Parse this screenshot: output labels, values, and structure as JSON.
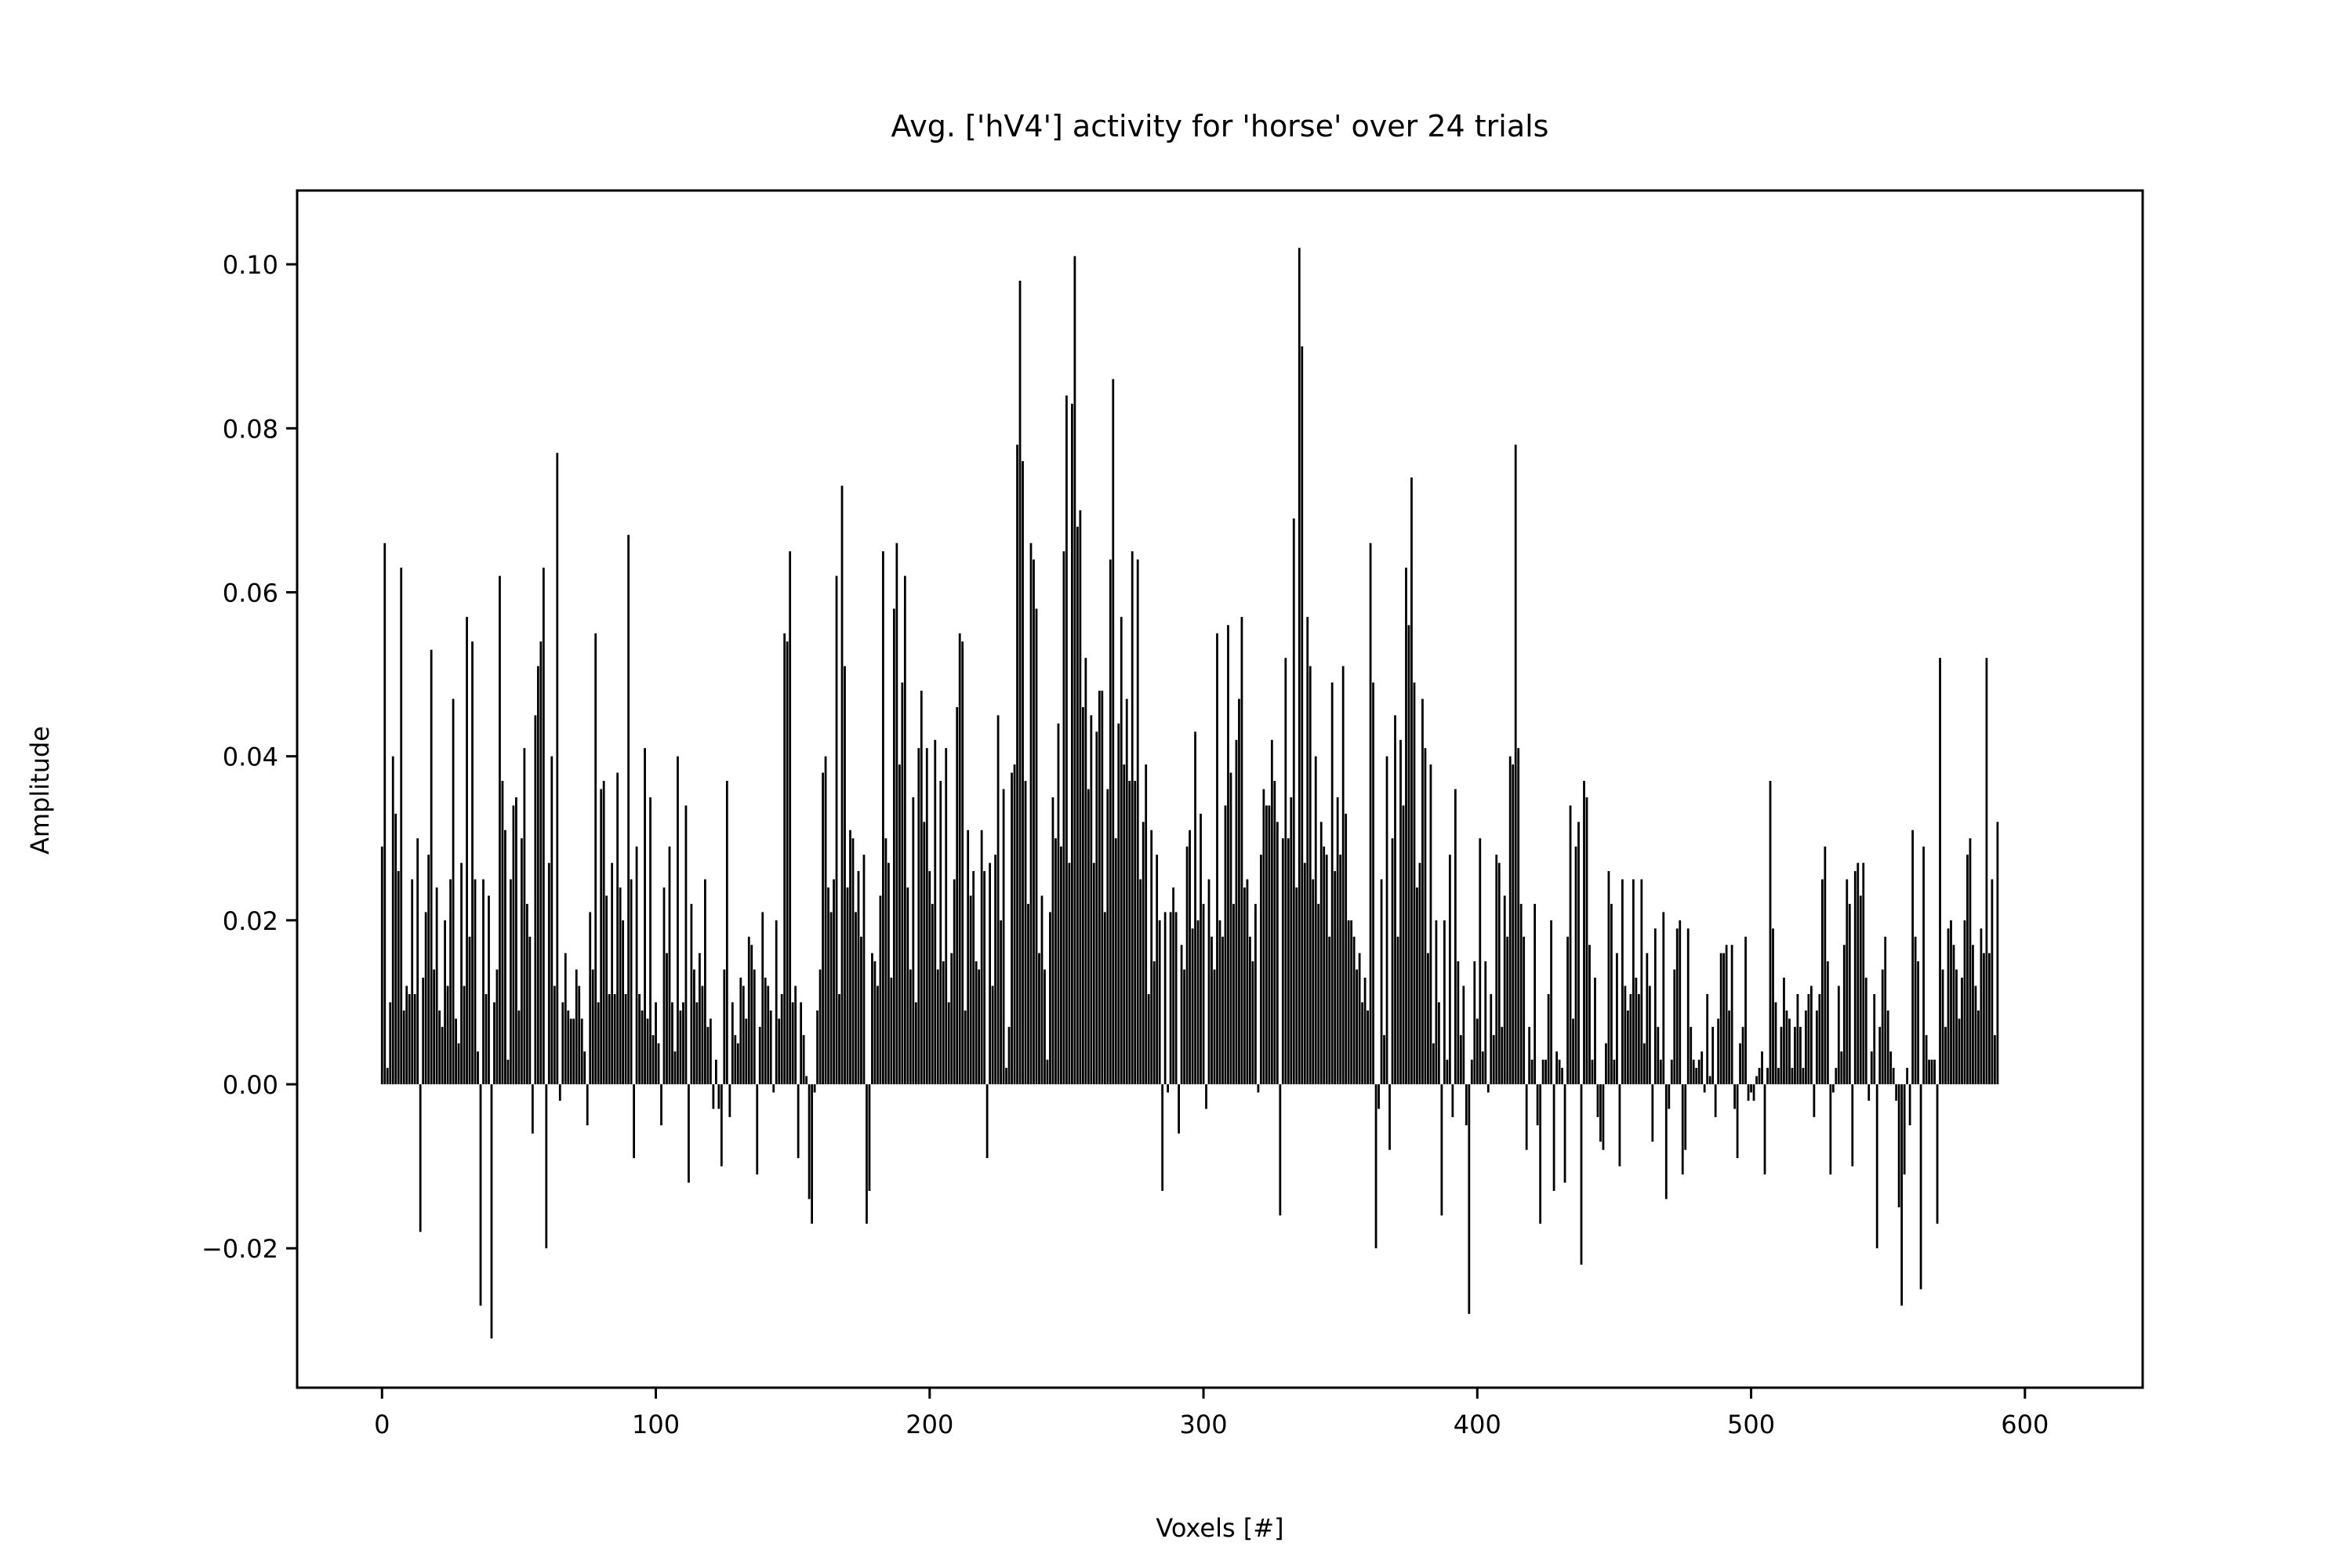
{
  "chart_data": {
    "type": "bar",
    "title": "Avg. ['hV4'] activity for 'horse' over 24 trials",
    "xlabel": "Voxels [#]",
    "ylabel": "Amplitude",
    "xlim": [
      -31,
      643
    ],
    "ylim": [
      -0.037,
      0.109
    ],
    "xticks": [
      0,
      100,
      200,
      300,
      400,
      500,
      600
    ],
    "xtick_labels": [
      "0",
      "100",
      "200",
      "300",
      "400",
      "500",
      "600"
    ],
    "yticks": [
      -0.02,
      0.0,
      0.02,
      0.04,
      0.06,
      0.08,
      0.1
    ],
    "ytick_labels": [
      "−0.02",
      "0.00",
      "0.02",
      "0.04",
      "0.06",
      "0.08",
      "0.10"
    ],
    "grid": false,
    "bar_color": "#000000",
    "x_start": 0,
    "x_step": 1,
    "values": [
      0.029,
      0.066,
      0.002,
      0.01,
      0.04,
      0.033,
      0.026,
      0.063,
      0.009,
      0.012,
      0.011,
      0.025,
      0.011,
      0.03,
      -0.018,
      0.013,
      0.021,
      0.028,
      0.053,
      0.014,
      0.024,
      0.009,
      0.007,
      0.02,
      0.012,
      0.025,
      0.047,
      0.008,
      0.005,
      0.027,
      0.012,
      0.057,
      0.018,
      0.054,
      0.025,
      0.004,
      -0.027,
      0.025,
      0.011,
      0.023,
      -0.031,
      0.01,
      0.014,
      0.062,
      0.037,
      0.031,
      0.003,
      0.025,
      0.034,
      0.035,
      0.009,
      0.03,
      0.041,
      0.022,
      0.018,
      -0.006,
      0.045,
      0.051,
      0.054,
      0.063,
      -0.02,
      0.027,
      0.04,
      0.012,
      0.077,
      -0.002,
      0.01,
      0.016,
      0.009,
      0.008,
      0.008,
      0.014,
      0.012,
      0.008,
      0.004,
      -0.005,
      0.021,
      0.014,
      0.055,
      0.01,
      0.036,
      0.037,
      0.023,
      0.011,
      0.027,
      0.011,
      0.038,
      0.024,
      0.02,
      0.011,
      0.067,
      0.025,
      -0.009,
      0.029,
      0.011,
      0.009,
      0.041,
      0.008,
      0.035,
      0.006,
      0.01,
      0.005,
      -0.005,
      0.024,
      0.016,
      0.029,
      0.01,
      0.004,
      0.04,
      0.009,
      0.01,
      0.034,
      -0.012,
      0.022,
      0.014,
      0.01,
      0.016,
      0.012,
      0.025,
      0.007,
      0.008,
      -0.003,
      0.003,
      -0.003,
      -0.01,
      0.014,
      0.037,
      -0.004,
      0.01,
      0.006,
      0.005,
      0.013,
      0.012,
      0.008,
      0.018,
      0.017,
      0.014,
      -0.011,
      0.007,
      0.021,
      0.013,
      0.012,
      0.009,
      -0.001,
      0.02,
      0.008,
      0.011,
      0.055,
      0.054,
      0.065,
      0.01,
      0.012,
      -0.009,
      0.01,
      0.006,
      0.001,
      -0.014,
      -0.017,
      -0.001,
      0.009,
      0.014,
      0.038,
      0.04,
      0.024,
      0.021,
      0.025,
      0.062,
      0.011,
      0.073,
      0.051,
      0.024,
      0.031,
      0.03,
      0.021,
      0.026,
      0.018,
      0.028,
      -0.017,
      -0.013,
      0.016,
      0.015,
      0.012,
      0.023,
      0.065,
      0.03,
      0.027,
      0.013,
      0.058,
      0.066,
      0.039,
      0.049,
      0.062,
      0.024,
      0.014,
      0.035,
      0.01,
      0.041,
      0.048,
      0.032,
      0.041,
      0.026,
      0.022,
      0.042,
      0.014,
      0.037,
      0.015,
      0.041,
      0.01,
      0.016,
      0.025,
      0.046,
      0.055,
      0.054,
      0.009,
      0.031,
      0.023,
      0.026,
      0.015,
      0.014,
      0.031,
      0.026,
      -0.009,
      0.027,
      0.012,
      0.028,
      0.045,
      0.02,
      0.036,
      0.002,
      0.007,
      0.038,
      0.039,
      0.078,
      0.098,
      0.076,
      0.037,
      0.022,
      0.066,
      0.064,
      0.058,
      0.016,
      0.023,
      0.014,
      0.003,
      0.021,
      0.035,
      0.03,
      0.044,
      0.029,
      0.065,
      0.084,
      0.027,
      0.083,
      0.101,
      0.068,
      0.07,
      0.046,
      0.052,
      0.036,
      0.045,
      0.027,
      0.043,
      0.048,
      0.048,
      0.021,
      0.036,
      0.064,
      0.086,
      0.03,
      0.044,
      0.057,
      0.039,
      0.047,
      0.037,
      0.065,
      0.037,
      0.064,
      0.025,
      0.032,
      0.039,
      0.011,
      0.031,
      0.015,
      0.028,
      0.02,
      -0.013,
      0.021,
      -0.001,
      0.021,
      0.024,
      0.021,
      -0.006,
      0.017,
      0.014,
      0.029,
      0.031,
      0.019,
      0.043,
      0.02,
      0.033,
      0.022,
      -0.003,
      0.025,
      0.018,
      0.014,
      0.055,
      0.02,
      0.018,
      0.034,
      0.056,
      0.038,
      0.022,
      0.042,
      0.047,
      0.057,
      0.024,
      0.025,
      0.018,
      0.015,
      0.022,
      -0.001,
      0.028,
      0.036,
      0.034,
      0.034,
      0.042,
      0.037,
      0.032,
      -0.016,
      0.03,
      0.052,
      0.03,
      0.035,
      0.069,
      0.024,
      0.102,
      0.09,
      0.027,
      0.057,
      0.051,
      0.025,
      0.04,
      0.022,
      0.032,
      0.029,
      0.028,
      0.018,
      0.049,
      0.026,
      0.035,
      0.028,
      0.051,
      0.033,
      0.02,
      0.02,
      0.018,
      0.014,
      0.016,
      0.01,
      0.013,
      0.009,
      0.066,
      0.049,
      -0.02,
      -0.003,
      0.025,
      0.006,
      0.04,
      -0.008,
      0.03,
      0.045,
      0.018,
      0.042,
      0.034,
      0.063,
      0.056,
      0.074,
      0.049,
      0.024,
      0.027,
      0.047,
      0.041,
      0.016,
      0.039,
      0.005,
      0.02,
      0.01,
      -0.016,
      0.02,
      0.003,
      0.028,
      -0.004,
      0.036,
      0.015,
      0.006,
      0.012,
      -0.005,
      -0.028,
      0.003,
      0.015,
      0.008,
      0.03,
      0.004,
      0.015,
      -0.001,
      0.011,
      0.006,
      0.028,
      0.027,
      0.007,
      0.023,
      0.018,
      0.04,
      0.039,
      0.078,
      0.041,
      0.022,
      0.018,
      -0.008,
      0.007,
      0.003,
      0.022,
      -0.005,
      -0.017,
      0.003,
      0.003,
      0.011,
      0.02,
      -0.013,
      0.004,
      0.003,
      0.002,
      -0.012,
      0.018,
      0.034,
      0.008,
      0.029,
      0.032,
      -0.022,
      0.037,
      0.035,
      0.017,
      0.003,
      0.013,
      -0.004,
      -0.007,
      -0.008,
      0.005,
      0.026,
      0.022,
      0.003,
      0.016,
      -0.01,
      0.025,
      0.012,
      0.009,
      0.011,
      0.025,
      0.013,
      0.011,
      0.025,
      0.005,
      0.016,
      0.012,
      -0.007,
      0.019,
      0.007,
      0.003,
      0.021,
      -0.014,
      -0.003,
      0.003,
      0.014,
      0.019,
      0.02,
      -0.011,
      -0.008,
      0.019,
      0.007,
      0.003,
      0.002,
      0.003,
      0.004,
      -0.001,
      0.011,
      0.001,
      0.007,
      -0.004,
      0.008,
      0.016,
      0.016,
      0.017,
      0.009,
      0.017,
      -0.003,
      -0.009,
      0.005,
      0.007,
      0.018,
      -0.002,
      -0.001,
      -0.002,
      0.001,
      0.002,
      0.004,
      -0.011,
      0.002,
      0.037,
      0.019,
      0.01,
      0.002,
      0.007,
      0.013,
      0.009,
      0.008,
      0.002,
      0.007,
      0.011,
      0.007,
      0.002,
      0.009,
      0.011,
      0.012,
      -0.004,
      0.009,
      0.011,
      0.025,
      0.029,
      0.015,
      -0.011,
      -0.001,
      0.002,
      0.012,
      0.004,
      0.017,
      0.025,
      0.022,
      -0.01,
      0.026,
      0.027,
      0.023,
      0.027,
      0.013,
      -0.002,
      0.004,
      0.011,
      -0.02,
      0.007,
      0.014,
      0.018,
      0.009,
      0.004,
      0.002,
      -0.002,
      -0.015,
      -0.027,
      -0.011,
      0.002,
      -0.005,
      0.031,
      0.018,
      0.015,
      -0.025,
      0.029,
      0.006,
      0.003,
      0.003,
      0.003,
      -0.017,
      0.052,
      0.014,
      0.007,
      0.019,
      0.02,
      0.017,
      0.014,
      0.008,
      0.013,
      0.02,
      0.028,
      0.03,
      0.017,
      0.012,
      0.009,
      0.019,
      0.016,
      0.052,
      0.016,
      0.025,
      0.006,
      0.032
    ]
  }
}
